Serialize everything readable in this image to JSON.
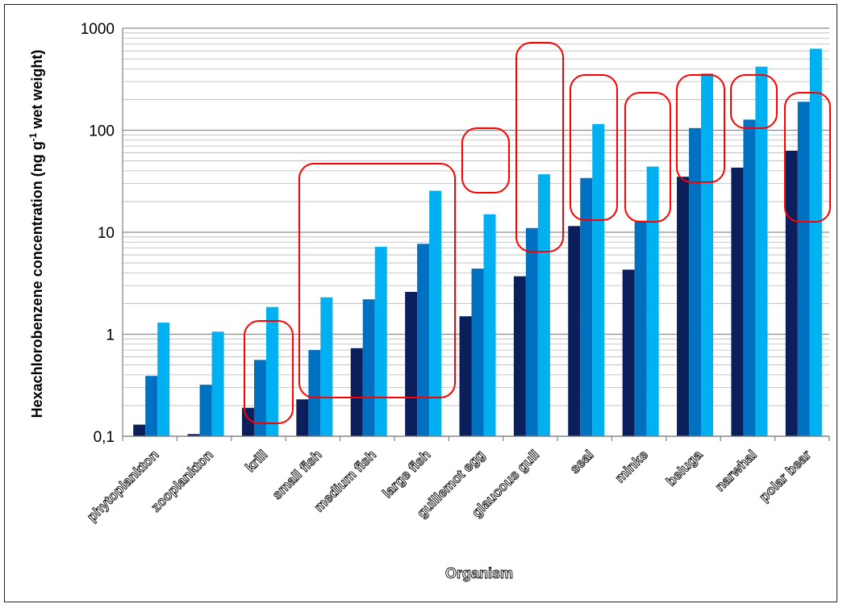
{
  "chart_data": {
    "type": "bar",
    "scale": "log",
    "xlabel": "Organism",
    "ylabel_parts": [
      "Hexachlorobenzene concentration  (ng g",
      "-1",
      " wet weight)"
    ],
    "ylim": [
      0.1,
      1000
    ],
    "y_ticks": [
      "0,1",
      "1",
      "10",
      "100",
      "1000"
    ],
    "grid": true,
    "categories": [
      "phytoplankton",
      "zooplankton",
      "krill",
      "small fish",
      "medium fish",
      "large fish",
      "guillemot egg",
      "glaucous gull",
      "seal",
      "minke",
      "beluga",
      "narwhal",
      "polar bear"
    ],
    "series": [
      {
        "color": "#0a1f5c",
        "values": [
          0.13,
          0.105,
          0.19,
          0.23,
          0.73,
          2.6,
          1.5,
          3.7,
          11.5,
          4.3,
          35,
          43,
          63
        ]
      },
      {
        "color": "#0070c0",
        "values": [
          0.39,
          0.32,
          0.56,
          0.7,
          2.2,
          7.7,
          4.4,
          11,
          34,
          13,
          105,
          127,
          190
        ]
      },
      {
        "color": "#00b0f0",
        "values": [
          1.3,
          1.06,
          1.85,
          2.3,
          7.2,
          25.5,
          15,
          37,
          115,
          44,
          360,
          420,
          630
        ]
      }
    ],
    "annotation_color": "#ff0000"
  }
}
